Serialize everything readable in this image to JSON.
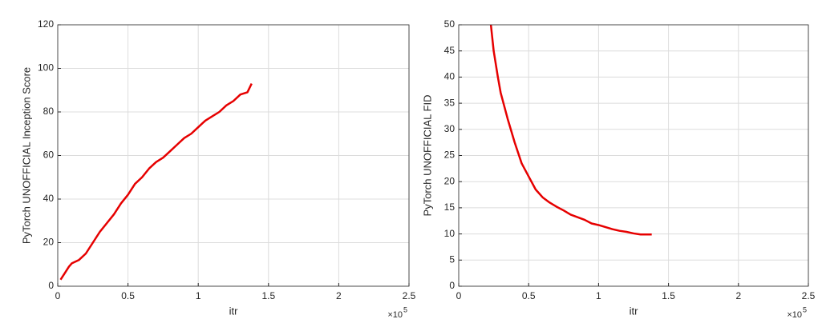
{
  "chart_data": [
    {
      "type": "line",
      "ylabel": "PyTorch UNOFFICIAL Inception Score",
      "xlabel": "itr",
      "x_multiplier": "×10",
      "x_exponent": 5,
      "xlim": [
        0,
        2.5
      ],
      "xticks": [
        0,
        0.5,
        1,
        1.5,
        2,
        2.5
      ],
      "ylim": [
        0,
        120
      ],
      "yticks": [
        0,
        20,
        40,
        60,
        80,
        100,
        120
      ],
      "grid": true,
      "series": [
        {
          "color": "#e60000",
          "x": [
            0.02,
            0.05,
            0.08,
            0.1,
            0.15,
            0.2,
            0.25,
            0.3,
            0.35,
            0.4,
            0.45,
            0.5,
            0.55,
            0.6,
            0.65,
            0.7,
            0.75,
            0.8,
            0.85,
            0.9,
            0.95,
            1.0,
            1.05,
            1.1,
            1.15,
            1.2,
            1.25,
            1.3,
            1.35,
            1.38
          ],
          "values": [
            3,
            6,
            9,
            10.5,
            12,
            15,
            20,
            25,
            29,
            33,
            38,
            42,
            47,
            50,
            54,
            57,
            59,
            62,
            65,
            68,
            70,
            73,
            76,
            78,
            80,
            83,
            85,
            88,
            89,
            93
          ]
        }
      ]
    },
    {
      "type": "line",
      "ylabel": "PyTorch UNOFFICIAL FID",
      "xlabel": "itr",
      "x_multiplier": "×10",
      "x_exponent": 5,
      "xlim": [
        0,
        2.5
      ],
      "xticks": [
        0,
        0.5,
        1,
        1.5,
        2,
        2.5
      ],
      "ylim": [
        0,
        50
      ],
      "yticks": [
        0,
        5,
        10,
        15,
        20,
        25,
        30,
        35,
        40,
        45,
        50
      ],
      "grid": true,
      "series": [
        {
          "color": "#e60000",
          "x": [
            0.23,
            0.25,
            0.28,
            0.3,
            0.35,
            0.4,
            0.45,
            0.5,
            0.55,
            0.6,
            0.65,
            0.7,
            0.75,
            0.8,
            0.85,
            0.9,
            0.95,
            1.0,
            1.05,
            1.1,
            1.15,
            1.2,
            1.25,
            1.3,
            1.35,
            1.38
          ],
          "values": [
            50,
            45,
            40,
            37,
            32,
            27.5,
            23.5,
            21,
            18.5,
            17,
            16,
            15.2,
            14.5,
            13.7,
            13.2,
            12.7,
            12,
            11.7,
            11.3,
            10.9,
            10.6,
            10.4,
            10.1,
            9.9,
            9.9,
            9.9
          ]
        }
      ]
    }
  ]
}
